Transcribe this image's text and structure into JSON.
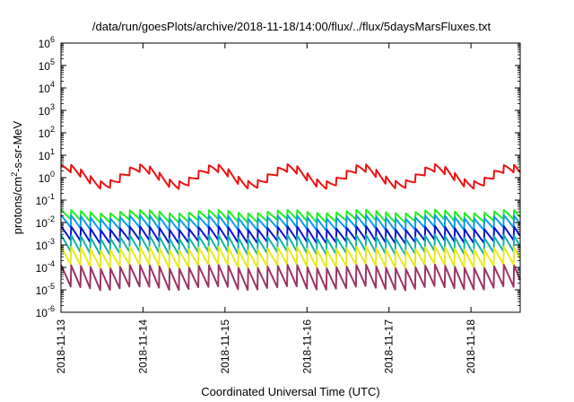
{
  "chart_data": {
    "type": "line",
    "title": "/data/run/goesPlots/archive/2018-11-18/14:00/flux/../flux/5daysMarsFluxes.txt",
    "xlabel": "Coordinated Universal Time (UTC)",
    "ylabel": {
      "prefix": "protons/cm",
      "sup": "2",
      "suffix": "-s-sr-MeV"
    },
    "yscale": "log",
    "ylim_exponent": [
      -6,
      6
    ],
    "y_ticks": [
      {
        "base": "10",
        "exp": "6"
      },
      {
        "base": "10",
        "exp": "5"
      },
      {
        "base": "10",
        "exp": "4"
      },
      {
        "base": "10",
        "exp": "3"
      },
      {
        "base": "10",
        "exp": "2"
      },
      {
        "base": "10",
        "exp": "1"
      },
      {
        "base": "10",
        "exp": "0"
      },
      {
        "base": "10",
        "exp": "-1"
      },
      {
        "base": "10",
        "exp": "-2"
      },
      {
        "base": "10",
        "exp": "-3"
      },
      {
        "base": "10",
        "exp": "-4"
      },
      {
        "base": "10",
        "exp": "-5"
      },
      {
        "base": "10",
        "exp": "-6"
      }
    ],
    "x_range_days": [
      0,
      5.6
    ],
    "x_tick_labels": [
      "2018-11-13",
      "2018-11-14",
      "2018-11-15",
      "2018-11-16",
      "2018-11-17",
      "2018-11-18"
    ],
    "grid": false,
    "legend": "none",
    "series": [
      {
        "color": "#ee1111",
        "mean_log": 0.05,
        "amp_slow": 0.38,
        "period": 0.9,
        "phase": 0.75,
        "saw_amp": 0.18,
        "saw_period": 0.12
      },
      {
        "color": "#22ee22",
        "mean_log": -1.72,
        "amp_slow": 0.08,
        "period": 0.9,
        "phase": 0.75,
        "saw_amp": 0.22,
        "saw_period": 0.12
      },
      {
        "color": "#1199ee",
        "mean_log": -2.02,
        "amp_slow": 0.08,
        "period": 0.9,
        "phase": 0.75,
        "saw_amp": 0.28,
        "saw_period": 0.12
      },
      {
        "color": "#0a16cc",
        "mean_log": -2.55,
        "amp_slow": 0.08,
        "period": 0.9,
        "phase": 0.75,
        "saw_amp": 0.32,
        "saw_period": 0.12
      },
      {
        "color": "#18b0a8",
        "mean_log": -3.0,
        "amp_slow": 0.08,
        "period": 0.9,
        "phase": 0.75,
        "saw_amp": 0.38,
        "saw_period": 0.12
      },
      {
        "color": "#e8e822",
        "mean_log": -3.55,
        "amp_slow": 0.08,
        "period": 0.9,
        "phase": 0.75,
        "saw_amp": 0.42,
        "saw_period": 0.12
      },
      {
        "color": "#9a3566",
        "mean_log": -4.45,
        "amp_slow": 0.08,
        "period": 0.9,
        "phase": 0.75,
        "saw_amp": 0.5,
        "saw_period": 0.12
      }
    ]
  }
}
